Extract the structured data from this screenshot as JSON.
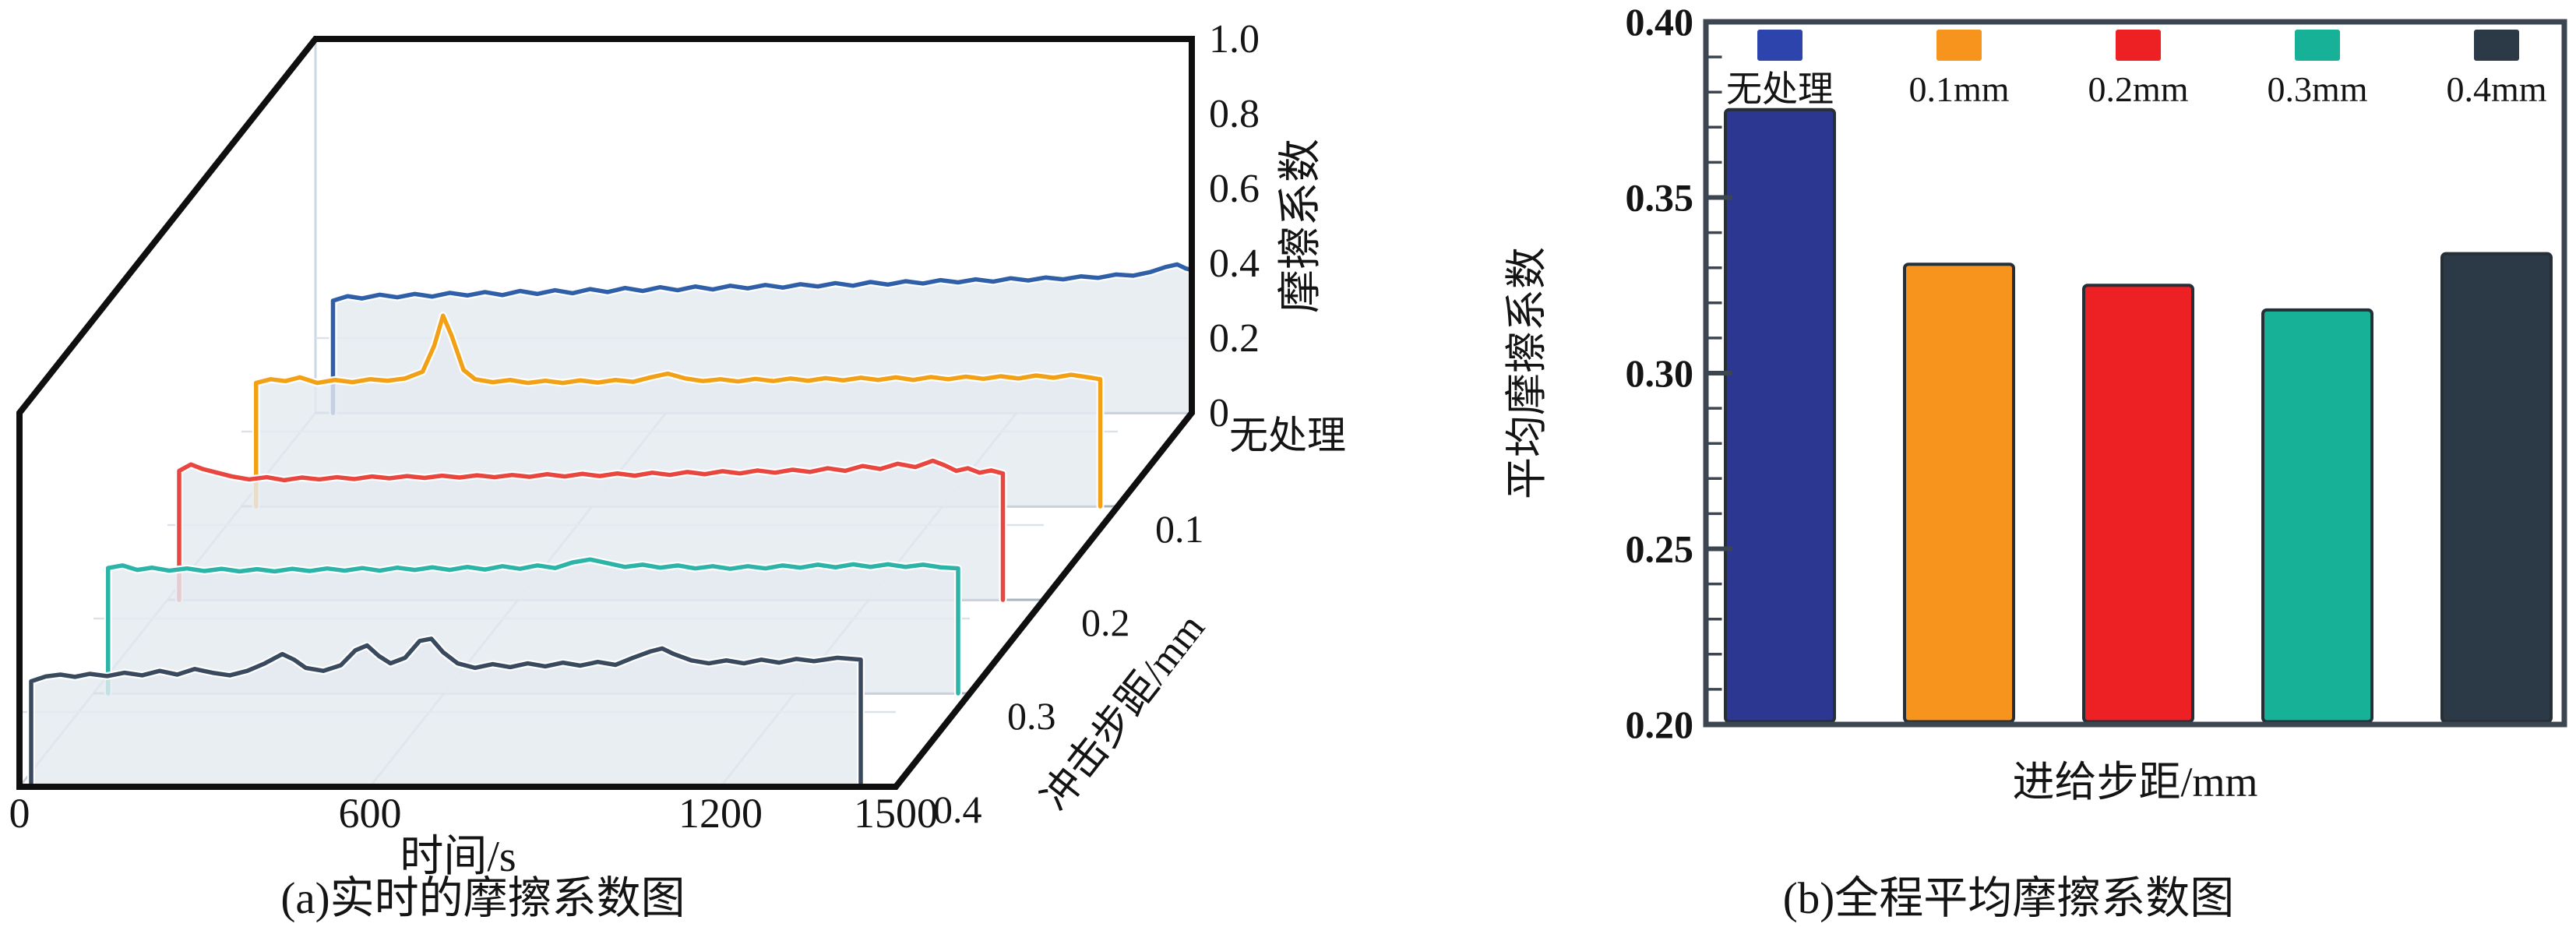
{
  "panels": {
    "a": {
      "caption": "(a)实时的摩擦系数图"
    },
    "b": {
      "caption": "(b)全程平均摩擦系数图"
    }
  },
  "chart_data": [
    {
      "id": "a",
      "type": "line",
      "variant": "3d_waterfall",
      "xlabel": "时间/s",
      "zlabel": "摩擦系数",
      "depth_label": "冲击步距/mm",
      "x_range": [
        0,
        1500
      ],
      "x_ticks": [
        0,
        600,
        1200,
        1500
      ],
      "z_range": [
        0,
        1.0
      ],
      "z_ticks": [
        0,
        0.2,
        0.4,
        0.6,
        0.8,
        1.0
      ],
      "depth_categories": [
        "无处理",
        "0.1",
        "0.2",
        "0.3",
        "0.4"
      ],
      "grid": true,
      "fill_color": "#e4eaf0",
      "series": [
        {
          "name": "无处理",
          "depth_offset": 4,
          "color": "#2f5fa8",
          "points": [
            [
              30,
              0.3
            ],
            [
              55,
              0.312
            ],
            [
              80,
              0.306
            ],
            [
              110,
              0.316
            ],
            [
              140,
              0.309
            ],
            [
              170,
              0.318
            ],
            [
              200,
              0.311
            ],
            [
              230,
              0.321
            ],
            [
              260,
              0.314
            ],
            [
              290,
              0.323
            ],
            [
              320,
              0.315
            ],
            [
              350,
              0.326
            ],
            [
              380,
              0.318
            ],
            [
              410,
              0.328
            ],
            [
              440,
              0.32
            ],
            [
              470,
              0.331
            ],
            [
              500,
              0.323
            ],
            [
              530,
              0.334
            ],
            [
              560,
              0.326
            ],
            [
              590,
              0.336
            ],
            [
              620,
              0.328
            ],
            [
              650,
              0.338
            ],
            [
              680,
              0.33
            ],
            [
              710,
              0.34
            ],
            [
              740,
              0.333
            ],
            [
              770,
              0.342
            ],
            [
              800,
              0.335
            ],
            [
              830,
              0.344
            ],
            [
              860,
              0.338
            ],
            [
              890,
              0.347
            ],
            [
              920,
              0.34
            ],
            [
              950,
              0.35
            ],
            [
              980,
              0.343
            ],
            [
              1010,
              0.352
            ],
            [
              1040,
              0.346
            ],
            [
              1070,
              0.355
            ],
            [
              1100,
              0.349
            ],
            [
              1130,
              0.357
            ],
            [
              1160,
              0.351
            ],
            [
              1190,
              0.36
            ],
            [
              1220,
              0.354
            ],
            [
              1250,
              0.362
            ],
            [
              1280,
              0.357
            ],
            [
              1310,
              0.365
            ],
            [
              1340,
              0.361
            ],
            [
              1370,
              0.37
            ],
            [
              1400,
              0.367
            ],
            [
              1430,
              0.377
            ],
            [
              1455,
              0.39
            ],
            [
              1475,
              0.397
            ],
            [
              1490,
              0.386
            ],
            [
              1500,
              0.382
            ]
          ]
        },
        {
          "name": "0.1",
          "depth_offset": 3,
          "color": "#f2a117",
          "points": [
            [
              25,
              0.33
            ],
            [
              50,
              0.34
            ],
            [
              75,
              0.335
            ],
            [
              100,
              0.345
            ],
            [
              130,
              0.33
            ],
            [
              160,
              0.338
            ],
            [
              190,
              0.332
            ],
            [
              220,
              0.34
            ],
            [
              250,
              0.336
            ],
            [
              280,
              0.342
            ],
            [
              310,
              0.36
            ],
            [
              330,
              0.43
            ],
            [
              345,
              0.51
            ],
            [
              360,
              0.455
            ],
            [
              380,
              0.365
            ],
            [
              400,
              0.34
            ],
            [
              430,
              0.332
            ],
            [
              460,
              0.338
            ],
            [
              490,
              0.33
            ],
            [
              520,
              0.336
            ],
            [
              550,
              0.33
            ],
            [
              580,
              0.337
            ],
            [
              610,
              0.331
            ],
            [
              640,
              0.338
            ],
            [
              670,
              0.333
            ],
            [
              700,
              0.345
            ],
            [
              730,
              0.355
            ],
            [
              760,
              0.342
            ],
            [
              790,
              0.335
            ],
            [
              820,
              0.34
            ],
            [
              850,
              0.334
            ],
            [
              880,
              0.341
            ],
            [
              910,
              0.335
            ],
            [
              940,
              0.342
            ],
            [
              970,
              0.336
            ],
            [
              1000,
              0.343
            ],
            [
              1030,
              0.337
            ],
            [
              1060,
              0.344
            ],
            [
              1090,
              0.338
            ],
            [
              1120,
              0.345
            ],
            [
              1150,
              0.338
            ],
            [
              1180,
              0.346
            ],
            [
              1210,
              0.34
            ],
            [
              1240,
              0.347
            ],
            [
              1270,
              0.341
            ],
            [
              1300,
              0.348
            ],
            [
              1330,
              0.342
            ],
            [
              1360,
              0.35
            ],
            [
              1390,
              0.344
            ],
            [
              1420,
              0.352
            ],
            [
              1450,
              0.345
            ],
            [
              1470,
              0.34
            ]
          ]
        },
        {
          "name": "0.2",
          "depth_offset": 2,
          "color": "#e8463e",
          "points": [
            [
              20,
              0.345
            ],
            [
              40,
              0.362
            ],
            [
              60,
              0.35
            ],
            [
              85,
              0.34
            ],
            [
              110,
              0.33
            ],
            [
              140,
              0.322
            ],
            [
              170,
              0.328
            ],
            [
              200,
              0.32
            ],
            [
              230,
              0.327
            ],
            [
              260,
              0.322
            ],
            [
              290,
              0.328
            ],
            [
              320,
              0.323
            ],
            [
              350,
              0.33
            ],
            [
              380,
              0.325
            ],
            [
              410,
              0.331
            ],
            [
              440,
              0.326
            ],
            [
              470,
              0.332
            ],
            [
              500,
              0.327
            ],
            [
              530,
              0.333
            ],
            [
              560,
              0.328
            ],
            [
              590,
              0.334
            ],
            [
              620,
              0.329
            ],
            [
              650,
              0.336
            ],
            [
              680,
              0.33
            ],
            [
              710,
              0.337
            ],
            [
              740,
              0.331
            ],
            [
              770,
              0.338
            ],
            [
              800,
              0.332
            ],
            [
              830,
              0.34
            ],
            [
              860,
              0.334
            ],
            [
              890,
              0.342
            ],
            [
              920,
              0.336
            ],
            [
              950,
              0.344
            ],
            [
              980,
              0.338
            ],
            [
              1010,
              0.346
            ],
            [
              1040,
              0.34
            ],
            [
              1070,
              0.348
            ],
            [
              1100,
              0.342
            ],
            [
              1130,
              0.352
            ],
            [
              1160,
              0.345
            ],
            [
              1190,
              0.358
            ],
            [
              1220,
              0.35
            ],
            [
              1250,
              0.364
            ],
            [
              1280,
              0.355
            ],
            [
              1310,
              0.372
            ],
            [
              1330,
              0.36
            ],
            [
              1350,
              0.345
            ],
            [
              1370,
              0.352
            ],
            [
              1390,
              0.34
            ],
            [
              1410,
              0.346
            ],
            [
              1430,
              0.338
            ]
          ]
        },
        {
          "name": "0.3",
          "depth_offset": 1,
          "color": "#2db4a8",
          "points": [
            [
              25,
              0.335
            ],
            [
              50,
              0.342
            ],
            [
              75,
              0.33
            ],
            [
              100,
              0.336
            ],
            [
              130,
              0.328
            ],
            [
              160,
              0.334
            ],
            [
              190,
              0.327
            ],
            [
              220,
              0.333
            ],
            [
              250,
              0.326
            ],
            [
              280,
              0.332
            ],
            [
              310,
              0.326
            ],
            [
              340,
              0.333
            ],
            [
              370,
              0.327
            ],
            [
              400,
              0.334
            ],
            [
              430,
              0.328
            ],
            [
              460,
              0.335
            ],
            [
              490,
              0.328
            ],
            [
              520,
              0.336
            ],
            [
              550,
              0.33
            ],
            [
              580,
              0.337
            ],
            [
              610,
              0.33
            ],
            [
              640,
              0.338
            ],
            [
              670,
              0.331
            ],
            [
              700,
              0.34
            ],
            [
              730,
              0.333
            ],
            [
              760,
              0.342
            ],
            [
              790,
              0.335
            ],
            [
              820,
              0.35
            ],
            [
              850,
              0.358
            ],
            [
              880,
              0.348
            ],
            [
              910,
              0.338
            ],
            [
              940,
              0.344
            ],
            [
              970,
              0.336
            ],
            [
              1000,
              0.342
            ],
            [
              1030,
              0.334
            ],
            [
              1060,
              0.34
            ],
            [
              1090,
              0.333
            ],
            [
              1120,
              0.34
            ],
            [
              1150,
              0.334
            ],
            [
              1180,
              0.342
            ],
            [
              1210,
              0.336
            ],
            [
              1240,
              0.344
            ],
            [
              1270,
              0.337
            ],
            [
              1300,
              0.345
            ],
            [
              1330,
              0.338
            ],
            [
              1360,
              0.345
            ],
            [
              1390,
              0.338
            ],
            [
              1420,
              0.344
            ],
            [
              1450,
              0.337
            ],
            [
              1480,
              0.334
            ]
          ]
        },
        {
          "name": "0.4",
          "depth_offset": 0,
          "color": "#3a4a5e",
          "points": [
            [
              20,
              0.282
            ],
            [
              45,
              0.295
            ],
            [
              70,
              0.3
            ],
            [
              95,
              0.294
            ],
            [
              120,
              0.302
            ],
            [
              150,
              0.296
            ],
            [
              180,
              0.305
            ],
            [
              210,
              0.298
            ],
            [
              240,
              0.31
            ],
            [
              270,
              0.3
            ],
            [
              300,
              0.315
            ],
            [
              330,
              0.305
            ],
            [
              360,
              0.298
            ],
            [
              390,
              0.31
            ],
            [
              420,
              0.33
            ],
            [
              450,
              0.355
            ],
            [
              470,
              0.34
            ],
            [
              490,
              0.318
            ],
            [
              520,
              0.31
            ],
            [
              550,
              0.325
            ],
            [
              575,
              0.365
            ],
            [
              595,
              0.378
            ],
            [
              615,
              0.35
            ],
            [
              635,
              0.33
            ],
            [
              660,
              0.345
            ],
            [
              685,
              0.39
            ],
            [
              705,
              0.396
            ],
            [
              725,
              0.36
            ],
            [
              750,
              0.33
            ],
            [
              780,
              0.318
            ],
            [
              810,
              0.328
            ],
            [
              840,
              0.32
            ],
            [
              870,
              0.33
            ],
            [
              900,
              0.322
            ],
            [
              930,
              0.332
            ],
            [
              960,
              0.324
            ],
            [
              990,
              0.334
            ],
            [
              1020,
              0.326
            ],
            [
              1050,
              0.345
            ],
            [
              1080,
              0.362
            ],
            [
              1100,
              0.37
            ],
            [
              1120,
              0.355
            ],
            [
              1150,
              0.338
            ],
            [
              1180,
              0.33
            ],
            [
              1210,
              0.338
            ],
            [
              1240,
              0.33
            ],
            [
              1270,
              0.34
            ],
            [
              1300,
              0.332
            ],
            [
              1330,
              0.342
            ],
            [
              1360,
              0.336
            ],
            [
              1400,
              0.345
            ],
            [
              1440,
              0.34
            ]
          ]
        }
      ]
    },
    {
      "id": "b",
      "type": "bar",
      "xlabel": "进给步距/mm",
      "ylabel": "平均摩擦系数",
      "ylim": [
        0.2,
        0.4
      ],
      "y_ticks": [
        0.2,
        0.25,
        0.3,
        0.35,
        0.4
      ],
      "minor_tick_step": 0.01,
      "categories": [
        "无处理",
        "0.1mm",
        "0.2mm",
        "0.3mm",
        "0.4mm"
      ],
      "values": [
        0.375,
        0.331,
        0.325,
        0.318,
        0.334
      ],
      "colors": [
        "#2c3792",
        "#f7941e",
        "#ed2024",
        "#17b198",
        "#2c3a47"
      ],
      "legend_swatch_colors": [
        "#2d44ad",
        "#f7941e",
        "#ed2024",
        "#17b198",
        "#2c3a47"
      ],
      "bar_edge_color": "#262e36",
      "frame_color": "#3c4650",
      "legend_position": "top-inside",
      "grid": false
    }
  ]
}
